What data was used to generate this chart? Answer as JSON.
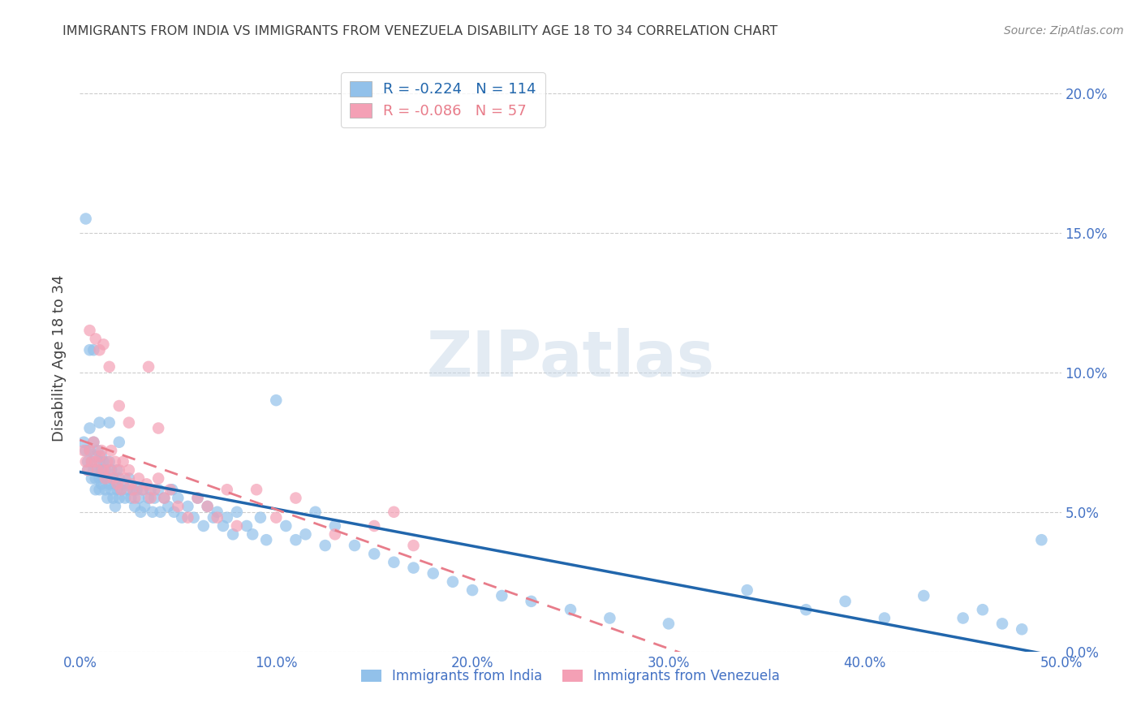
{
  "title": "IMMIGRANTS FROM INDIA VS IMMIGRANTS FROM VENEZUELA DISABILITY AGE 18 TO 34 CORRELATION CHART",
  "source": "Source: ZipAtlas.com",
  "ylabel": "Disability Age 18 to 34",
  "x_min": 0.0,
  "x_max": 0.5,
  "y_min": 0.0,
  "y_max": 0.21,
  "x_ticks": [
    0.0,
    0.1,
    0.2,
    0.3,
    0.4,
    0.5
  ],
  "x_tick_labels": [
    "0.0%",
    "10.0%",
    "20.0%",
    "30.0%",
    "40.0%",
    "50.0%"
  ],
  "y_ticks": [
    0.0,
    0.05,
    0.1,
    0.15,
    0.2
  ],
  "y_tick_labels_right": [
    "0.0%",
    "5.0%",
    "10.0%",
    "15.0%",
    "20.0%"
  ],
  "india_color": "#92C1EA",
  "venezuela_color": "#F4A0B5",
  "trendline_india_color": "#2166AC",
  "trendline_venezuela_color": "#E87C8A",
  "legend_india_R": "-0.224",
  "legend_india_N": "114",
  "legend_venezuela_R": "-0.086",
  "legend_venezuela_N": "57",
  "watermark": "ZIPatlas",
  "india_x": [
    0.002,
    0.003,
    0.004,
    0.004,
    0.005,
    0.005,
    0.006,
    0.006,
    0.007,
    0.007,
    0.008,
    0.008,
    0.008,
    0.009,
    0.009,
    0.01,
    0.01,
    0.01,
    0.011,
    0.011,
    0.011,
    0.012,
    0.012,
    0.013,
    0.013,
    0.014,
    0.014,
    0.015,
    0.015,
    0.016,
    0.016,
    0.017,
    0.017,
    0.018,
    0.018,
    0.019,
    0.019,
    0.02,
    0.02,
    0.021,
    0.022,
    0.023,
    0.024,
    0.025,
    0.026,
    0.027,
    0.028,
    0.029,
    0.03,
    0.031,
    0.032,
    0.033,
    0.035,
    0.036,
    0.037,
    0.038,
    0.04,
    0.041,
    0.043,
    0.045,
    0.047,
    0.048,
    0.05,
    0.052,
    0.055,
    0.058,
    0.06,
    0.063,
    0.065,
    0.068,
    0.07,
    0.073,
    0.075,
    0.078,
    0.08,
    0.085,
    0.088,
    0.092,
    0.095,
    0.1,
    0.105,
    0.11,
    0.115,
    0.12,
    0.125,
    0.13,
    0.14,
    0.15,
    0.16,
    0.17,
    0.18,
    0.19,
    0.2,
    0.215,
    0.23,
    0.25,
    0.27,
    0.3,
    0.34,
    0.37,
    0.39,
    0.41,
    0.43,
    0.45,
    0.46,
    0.47,
    0.48,
    0.49,
    0.003,
    0.005,
    0.007,
    0.01,
    0.015,
    0.02
  ],
  "india_y": [
    0.075,
    0.072,
    0.068,
    0.065,
    0.08,
    0.072,
    0.068,
    0.062,
    0.075,
    0.065,
    0.07,
    0.062,
    0.058,
    0.072,
    0.065,
    0.068,
    0.062,
    0.058,
    0.07,
    0.065,
    0.06,
    0.068,
    0.062,
    0.065,
    0.058,
    0.062,
    0.055,
    0.068,
    0.06,
    0.065,
    0.058,
    0.062,
    0.055,
    0.06,
    0.052,
    0.065,
    0.058,
    0.062,
    0.055,
    0.058,
    0.06,
    0.055,
    0.058,
    0.062,
    0.055,
    0.058,
    0.052,
    0.058,
    0.055,
    0.05,
    0.058,
    0.052,
    0.055,
    0.058,
    0.05,
    0.055,
    0.058,
    0.05,
    0.055,
    0.052,
    0.058,
    0.05,
    0.055,
    0.048,
    0.052,
    0.048,
    0.055,
    0.045,
    0.052,
    0.048,
    0.05,
    0.045,
    0.048,
    0.042,
    0.05,
    0.045,
    0.042,
    0.048,
    0.04,
    0.09,
    0.045,
    0.04,
    0.042,
    0.05,
    0.038,
    0.045,
    0.038,
    0.035,
    0.032,
    0.03,
    0.028,
    0.025,
    0.022,
    0.02,
    0.018,
    0.015,
    0.012,
    0.01,
    0.022,
    0.015,
    0.018,
    0.012,
    0.02,
    0.012,
    0.015,
    0.01,
    0.008,
    0.04,
    0.155,
    0.108,
    0.108,
    0.082,
    0.082,
    0.075
  ],
  "venezuela_x": [
    0.002,
    0.003,
    0.004,
    0.005,
    0.006,
    0.007,
    0.008,
    0.009,
    0.01,
    0.011,
    0.012,
    0.013,
    0.014,
    0.015,
    0.016,
    0.017,
    0.018,
    0.019,
    0.02,
    0.021,
    0.022,
    0.023,
    0.025,
    0.026,
    0.027,
    0.028,
    0.03,
    0.032,
    0.034,
    0.036,
    0.038,
    0.04,
    0.043,
    0.046,
    0.05,
    0.055,
    0.06,
    0.065,
    0.07,
    0.075,
    0.08,
    0.09,
    0.1,
    0.11,
    0.13,
    0.15,
    0.16,
    0.17,
    0.005,
    0.008,
    0.01,
    0.012,
    0.015,
    0.02,
    0.025,
    0.035,
    0.04
  ],
  "venezuela_y": [
    0.072,
    0.068,
    0.065,
    0.072,
    0.068,
    0.075,
    0.068,
    0.065,
    0.07,
    0.072,
    0.065,
    0.062,
    0.068,
    0.065,
    0.072,
    0.062,
    0.068,
    0.06,
    0.065,
    0.058,
    0.068,
    0.062,
    0.065,
    0.06,
    0.058,
    0.055,
    0.062,
    0.058,
    0.06,
    0.055,
    0.058,
    0.062,
    0.055,
    0.058,
    0.052,
    0.048,
    0.055,
    0.052,
    0.048,
    0.058,
    0.045,
    0.058,
    0.048,
    0.055,
    0.042,
    0.045,
    0.05,
    0.038,
    0.115,
    0.112,
    0.108,
    0.11,
    0.102,
    0.088,
    0.082,
    0.102,
    0.08
  ],
  "background_color": "#FFFFFF",
  "grid_color": "#CCCCCC",
  "tick_color": "#4472C4",
  "title_color": "#404040",
  "ylabel_color": "#404040",
  "source_color": "#888888"
}
